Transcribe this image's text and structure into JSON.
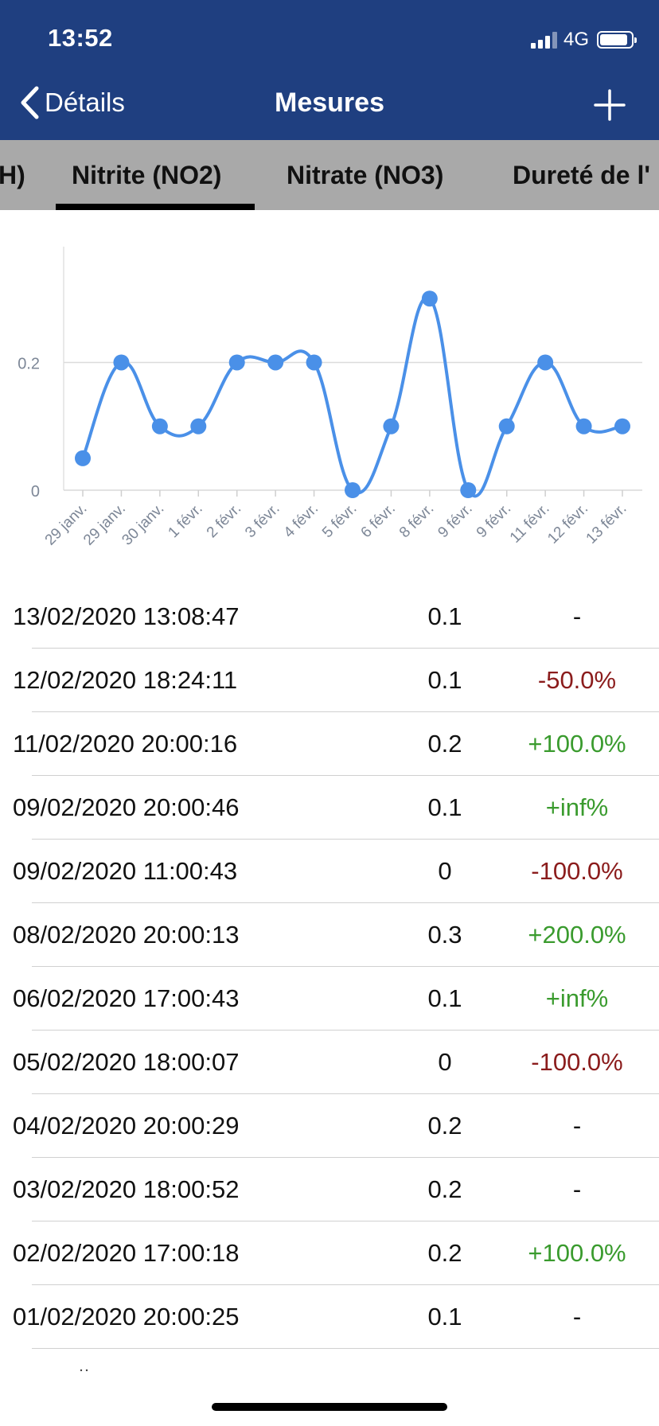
{
  "status_bar": {
    "time": "13:52",
    "network": "4G"
  },
  "nav": {
    "back_label": "Détails",
    "title": "Mesures"
  },
  "tabs": [
    {
      "label": "H)",
      "selected": false
    },
    {
      "label": "Nitrite (NO2)",
      "selected": true
    },
    {
      "label": "Nitrate (NO3)",
      "selected": false
    },
    {
      "label": "Dureté de l'",
      "selected": false
    }
  ],
  "chart_data": {
    "type": "line",
    "categories": [
      "29 janv.",
      "29 janv.",
      "30 janv.",
      "1 févr.",
      "2 févr.",
      "3 févr.",
      "4 févr.",
      "5 févr.",
      "6 févr.",
      "8 févr.",
      "9 févr.",
      "9 févr.",
      "11 févr.",
      "12 févr.",
      "13 févr."
    ],
    "series": [
      {
        "values": [
          0.05,
          0.2,
          0.1,
          0.1,
          0.2,
          0.2,
          0.2,
          0,
          0.1,
          0.3,
          0,
          0.1,
          0.2,
          0.1,
          0.1
        ]
      }
    ],
    "y_ticks": [
      "0",
      "0.2"
    ],
    "ylim": [
      0,
      0.375
    ],
    "grid": true,
    "color": "#4a90e8"
  },
  "measurements": [
    {
      "date": "13/02/2020 13:08:47",
      "value": "0.1",
      "change": "-",
      "trend": "neutral"
    },
    {
      "date": "12/02/2020 18:24:11",
      "value": "0.1",
      "change": "-50.0%",
      "trend": "down"
    },
    {
      "date": "11/02/2020 20:00:16",
      "value": "0.2",
      "change": "+100.0%",
      "trend": "up"
    },
    {
      "date": "09/02/2020 20:00:46",
      "value": "0.1",
      "change": "+inf%",
      "trend": "up"
    },
    {
      "date": "09/02/2020 11:00:43",
      "value": "0",
      "change": "-100.0%",
      "trend": "down"
    },
    {
      "date": "08/02/2020 20:00:13",
      "value": "0.3",
      "change": "+200.0%",
      "trend": "up"
    },
    {
      "date": "06/02/2020 17:00:43",
      "value": "0.1",
      "change": "+inf%",
      "trend": "up"
    },
    {
      "date": "05/02/2020 18:00:07",
      "value": "0",
      "change": "-100.0%",
      "trend": "down"
    },
    {
      "date": "04/02/2020 20:00:29",
      "value": "0.2",
      "change": "-",
      "trend": "neutral"
    },
    {
      "date": "03/02/2020 18:00:52",
      "value": "0.2",
      "change": "-",
      "trend": "neutral"
    },
    {
      "date": "02/02/2020 17:00:18",
      "value": "0.2",
      "change": "+100.0%",
      "trend": "up"
    },
    {
      "date": "01/02/2020 20:00:25",
      "value": "0.1",
      "change": "-",
      "trend": "neutral"
    }
  ],
  "colors": {
    "header": "#1f3f80",
    "tab_bar": "#a9a9a9",
    "up": "#3a9b2e",
    "down": "#8b1c1c"
  },
  "icons": {
    "back": "chevron-left-icon",
    "add": "plus-icon",
    "signal": "cellular-signal-icon",
    "battery": "battery-icon"
  }
}
